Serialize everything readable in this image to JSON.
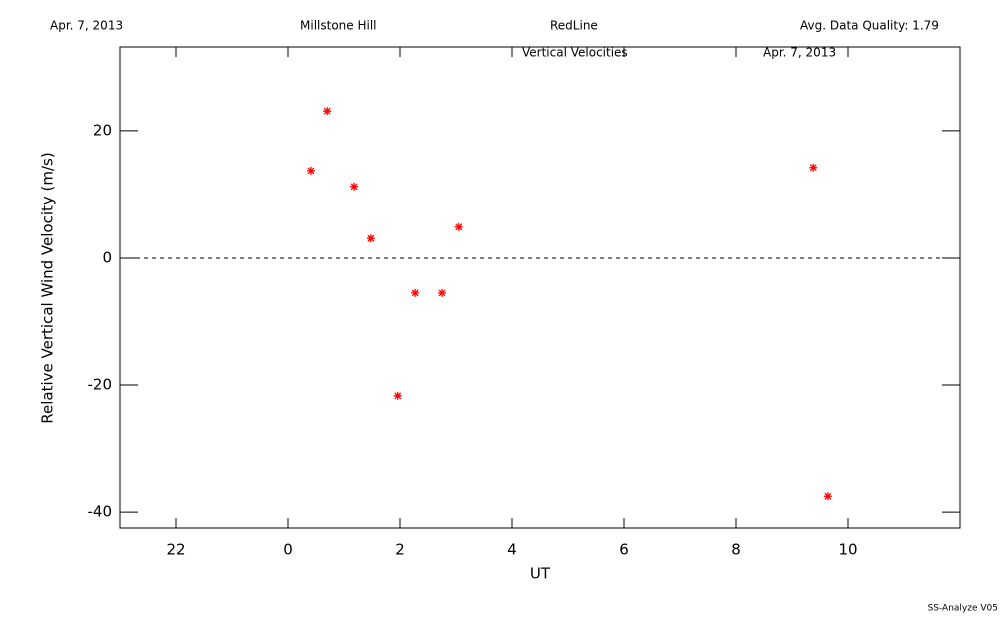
{
  "chart_data": {
    "type": "scatter",
    "header": [
      "Apr. 7, 2013",
      "Millstone Hill",
      "RedLine",
      "Avg. Data Quality: 1.79"
    ],
    "title": "Vertical Velocities",
    "subtitle": "Apr. 7, 2013",
    "footer": "SS-Analyze V05",
    "x_label": "UT",
    "y_label": "Relative Vertical Wind Velocity (m/s)",
    "xlim": [
      -3,
      12
    ],
    "ylim": [
      -42.5,
      33.2
    ],
    "xticks": [
      {
        "value": -2,
        "label": "22"
      },
      0,
      2,
      4,
      6,
      8,
      10
    ],
    "yticks": [
      -40,
      -20,
      0,
      20
    ],
    "reference_line": 0,
    "color": "#ff0000",
    "x": [
      0.41,
      0.7,
      1.18,
      1.48,
      1.96,
      2.27,
      2.75,
      3.05,
      9.38,
      9.64
    ],
    "values": [
      13.7,
      23.1,
      11.2,
      3.1,
      -21.7,
      -5.5,
      -5.5,
      4.9,
      14.2,
      -37.5
    ]
  }
}
